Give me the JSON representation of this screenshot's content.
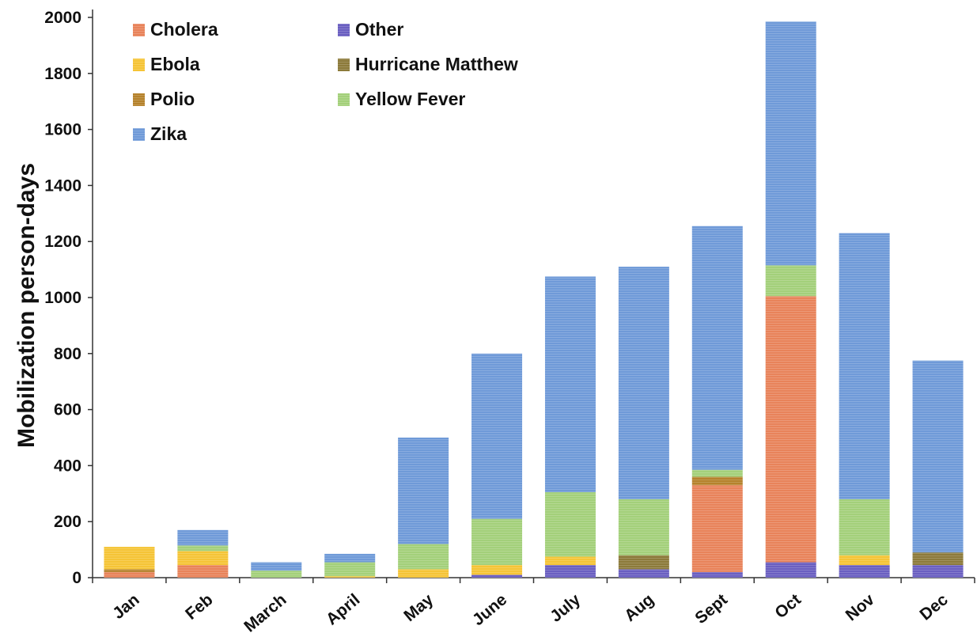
{
  "chart_data": {
    "type": "bar",
    "stacked": true,
    "ylabel": "Mobilization person-days",
    "xlabel": "",
    "ylim": [
      0,
      2000
    ],
    "yticks": [
      0,
      200,
      400,
      600,
      800,
      1000,
      1200,
      1400,
      1600,
      1800,
      2000
    ],
    "grid": false,
    "legend_position": "top-left",
    "categories": [
      "Jan",
      "Feb",
      "March",
      "April",
      "May",
      "June",
      "July",
      "Aug",
      "Sept",
      "Oct",
      "Nov",
      "Dec"
    ],
    "series": [
      {
        "name": "Other",
        "color": "#6a5fc1",
        "values": [
          0,
          0,
          0,
          0,
          0,
          10,
          45,
          30,
          20,
          55,
          45,
          45
        ]
      },
      {
        "name": "Hurricane Matthew",
        "color": "#8c7a3a",
        "values": [
          0,
          0,
          0,
          0,
          0,
          0,
          0,
          50,
          0,
          0,
          0,
          45
        ]
      },
      {
        "name": "Cholera",
        "color": "#e8835a",
        "values": [
          20,
          45,
          0,
          0,
          0,
          0,
          0,
          0,
          310,
          950,
          0,
          0
        ]
      },
      {
        "name": "Polio",
        "color": "#b5822c",
        "values": [
          10,
          0,
          0,
          0,
          0,
          0,
          0,
          0,
          30,
          0,
          0,
          0
        ]
      },
      {
        "name": "Ebola",
        "color": "#f5c436",
        "values": [
          80,
          50,
          0,
          5,
          30,
          35,
          30,
          0,
          0,
          0,
          35,
          0
        ]
      },
      {
        "name": "Yellow Fever",
        "color": "#a3d07a",
        "values": [
          0,
          20,
          25,
          50,
          90,
          165,
          230,
          200,
          25,
          110,
          200,
          0
        ]
      },
      {
        "name": "Zika",
        "color": "#6f9ad8",
        "values": [
          0,
          55,
          30,
          30,
          380,
          590,
          770,
          830,
          870,
          870,
          950,
          685
        ]
      }
    ],
    "legend": [
      {
        "name": "Cholera",
        "color": "#e8835a"
      },
      {
        "name": "Other",
        "color": "#6a5fc1"
      },
      {
        "name": "Ebola",
        "color": "#f5c436"
      },
      {
        "name": "Hurricane Matthew",
        "color": "#8c7a3a"
      },
      {
        "name": "Polio",
        "color": "#b5822c"
      },
      {
        "name": "Yellow Fever",
        "color": "#a3d07a"
      },
      {
        "name": "Zika",
        "color": "#6f9ad8"
      }
    ]
  }
}
